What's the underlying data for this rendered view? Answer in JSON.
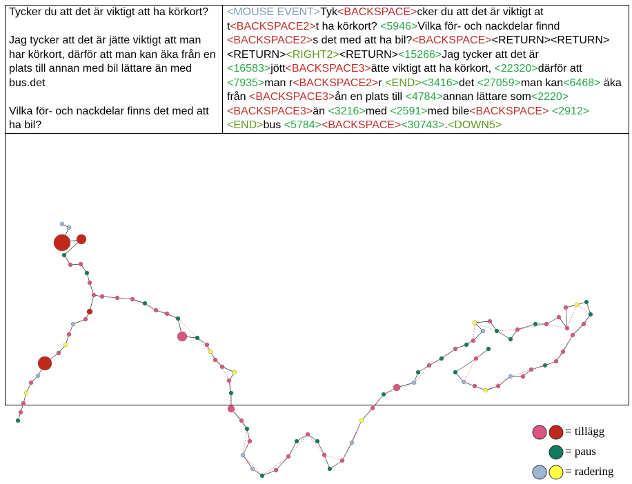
{
  "final_text": {
    "question": "Tycker du att det är viktigt att ha körkort?",
    "answer": "Jag tycker att det är jätte viktigt att man har körkort, därför att man kan äka från en plats till annan med bil lättare än med bus.det",
    "question2": "Vilka för- och nackdelar finns det med att ha bil?"
  },
  "log_styles": {
    "mouse": "#7f9cc0",
    "deletion": "#c0302a",
    "pause": "#2aa84a",
    "navigation": "#5e9a1e",
    "text": "#000000"
  },
  "log": [
    {
      "kind": "mouse",
      "text": "<MOUSE EVENT>"
    },
    {
      "kind": "text",
      "text": "Tyk"
    },
    {
      "kind": "deletion",
      "text": "<BACKSPACE>"
    },
    {
      "kind": "text",
      "text": "cker du att det är viktigt at t"
    },
    {
      "kind": "deletion",
      "text": "<BACKSPACE2>"
    },
    {
      "kind": "text",
      "text": "t ha körkort? "
    },
    {
      "kind": "pause",
      "text": "<5946>"
    },
    {
      "kind": "text",
      "text": "Vilka för- och nackdelar finnd "
    },
    {
      "kind": "deletion",
      "text": "<BACKSPACE2>"
    },
    {
      "kind": "text",
      "text": "s det med att ha bil?"
    },
    {
      "kind": "deletion",
      "text": "<BACKSPACE>"
    },
    {
      "kind": "text",
      "text": "<RETURN><RETURN><RETURN>"
    },
    {
      "kind": "navigation",
      "text": "<RIGHT2>"
    },
    {
      "kind": "text",
      "text": "<RETURN>"
    },
    {
      "kind": "pause",
      "text": "<15266>"
    },
    {
      "kind": "text",
      "text": "Jag tycker att det är "
    },
    {
      "kind": "pause",
      "text": "<16583>"
    },
    {
      "kind": "text",
      "text": "jött"
    },
    {
      "kind": "deletion",
      "text": "<BACKSPACE3>"
    },
    {
      "kind": "text",
      "text": "ätte viktigt att ha körkort, "
    },
    {
      "kind": "pause",
      "text": "<22320>"
    },
    {
      "kind": "text",
      "text": "därför att "
    },
    {
      "kind": "pause",
      "text": "<7935>"
    },
    {
      "kind": "text",
      "text": "man r"
    },
    {
      "kind": "deletion",
      "text": "<BACKSPACE2>"
    },
    {
      "kind": "text",
      "text": "r "
    },
    {
      "kind": "navigation",
      "text": "<END>"
    },
    {
      "kind": "pause",
      "text": "<3416>"
    },
    {
      "kind": "text",
      "text": "det "
    },
    {
      "kind": "pause",
      "text": "<27059>"
    },
    {
      "kind": "text",
      "text": "man kan"
    },
    {
      "kind": "pause",
      "text": "<6468>"
    },
    {
      "kind": "text",
      "text": " äka från "
    },
    {
      "kind": "deletion",
      "text": "<BACKSPACE3>"
    },
    {
      "kind": "text",
      "text": "ån en plats till "
    },
    {
      "kind": "pause",
      "text": "<4784>"
    },
    {
      "kind": "text",
      "text": "annan lättare som"
    },
    {
      "kind": "pause",
      "text": "<2220>"
    },
    {
      "kind": "deletion",
      "text": "<BACKSPACE3>"
    },
    {
      "kind": "text",
      "text": "än "
    },
    {
      "kind": "pause",
      "text": "<3216>"
    },
    {
      "kind": "text",
      "text": "med "
    },
    {
      "kind": "pause",
      "text": "<2591>"
    },
    {
      "kind": "text",
      "text": "med bile"
    },
    {
      "kind": "deletion",
      "text": "<BACKSPACE>"
    },
    {
      "kind": "text",
      "text": " "
    },
    {
      "kind": "pause",
      "text": "<2912>"
    },
    {
      "kind": "navigation",
      "text": "<END>"
    },
    {
      "kind": "text",
      "text": "bus "
    },
    {
      "kind": "pause",
      "text": "<5784>"
    },
    {
      "kind": "deletion",
      "text": "<BACKSPACE>"
    },
    {
      "kind": "pause",
      "text": "<30743>"
    },
    {
      "kind": "text",
      "text": "."
    },
    {
      "kind": "navigation",
      "text": "<DOWN5>"
    }
  ],
  "legend": [
    {
      "label": "= tillägg",
      "colors": [
        "#d9567f",
        "#c0281e"
      ]
    },
    {
      "label": "= paus",
      "colors": [
        "#0f7a5e"
      ]
    },
    {
      "label": "= radering",
      "colors": [
        "#9fb6d2",
        "#ffff44"
      ]
    }
  ]
}
